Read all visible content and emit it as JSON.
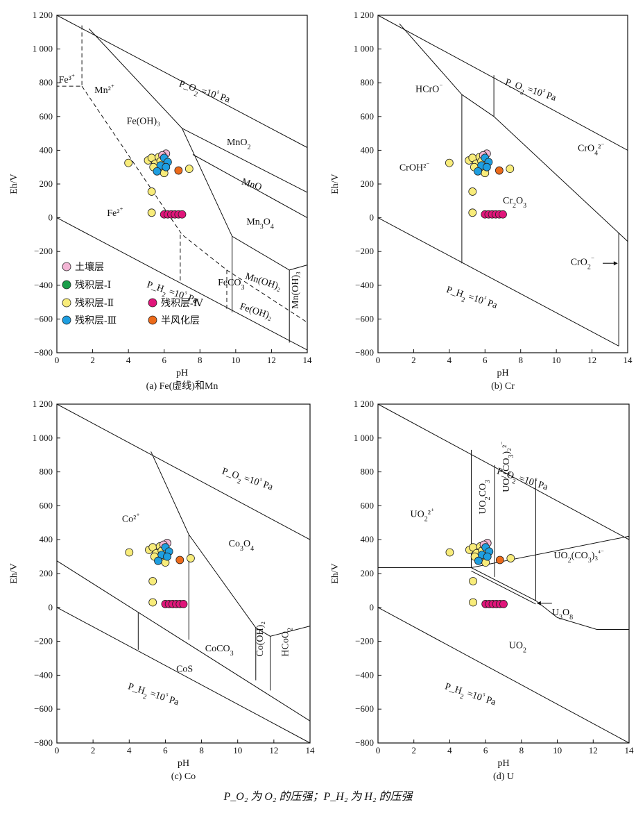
{
  "footnote": "P_O₂ 为 O₂ 的压强；P_H₂ 为 H₂ 的压强",
  "legend": {
    "items": [
      {
        "name": "土壤层",
        "color": "#f2b5d4"
      },
      {
        "name": "残积层-Ⅰ",
        "color": "#1a9e4a"
      },
      {
        "name": "残积层-Ⅱ",
        "color": "#f8ec7a"
      },
      {
        "name": "残积层-Ⅳ",
        "color": "#e0157a"
      },
      {
        "name": "残积层-Ⅲ",
        "color": "#1e9ee0"
      },
      {
        "name": "半风化层",
        "color": "#ec6a1a"
      }
    ]
  },
  "chart_data": [
    {
      "type": "scatter",
      "caption": "(a) Fe(虚线)和Mn",
      "xlabel": "pH",
      "ylabel": "Eh/V",
      "xlim": [
        0,
        14
      ],
      "ylim": [
        -800,
        1200
      ],
      "xticks": [
        "0",
        "2",
        "4",
        "6",
        "8",
        "10",
        "12",
        "14"
      ],
      "yticks": [
        "−800",
        "−600",
        "−400",
        "−200",
        "0",
        "200",
        "400",
        "600",
        "800",
        "1 000",
        "1 200"
      ],
      "region_labels": [
        "Fe³⁺",
        "Mn²⁺",
        "Fe(OH)₃",
        "Fe²⁺",
        "MnO₂",
        "MnO",
        "Mn₃O₄",
        "Mn(OH)₂",
        "Fe(OH)₂",
        "FeCO₃",
        "Mn(OH)₃",
        "P_O₂ =10⁵ Pa",
        "P_H₂ =10⁵ Pa"
      ],
      "boundaries": [
        {
          "style": "solid",
          "points": [
            [
              0,
              1200
            ],
            [
              14,
              416
            ]
          ]
        },
        {
          "style": "solid",
          "points": [
            [
              0,
              0
            ],
            [
              14,
              -784
            ]
          ]
        },
        {
          "style": "solid",
          "points": [
            [
              1.8,
              1120
            ],
            [
              7,
              530
            ],
            [
              9.8,
              -110
            ],
            [
              9.8,
              -560
            ]
          ]
        },
        {
          "style": "solid",
          "points": [
            [
              7,
              530
            ],
            [
              14,
              150
            ]
          ]
        },
        {
          "style": "solid",
          "points": [
            [
              7.6,
              375
            ],
            [
              14,
              0
            ]
          ]
        },
        {
          "style": "solid",
          "points": [
            [
              9.8,
              -110
            ],
            [
              13,
              -310
            ],
            [
              14,
              -280
            ]
          ]
        },
        {
          "style": "solid",
          "points": [
            [
              13,
              -310
            ],
            [
              13,
              -740
            ]
          ]
        },
        {
          "style": "dashed",
          "points": [
            [
              1.4,
              1140
            ],
            [
              1.4,
              780
            ],
            [
              0,
              780
            ]
          ]
        },
        {
          "style": "dashed",
          "points": [
            [
              1.4,
              780
            ],
            [
              7,
              -100
            ],
            [
              9.5,
              -310
            ],
            [
              14,
              -620
            ]
          ]
        },
        {
          "style": "dashed",
          "points": [
            [
              6.9,
              -100
            ],
            [
              6.9,
              -380
            ]
          ]
        },
        {
          "style": "dashed",
          "points": [
            [
              9.5,
              -310
            ],
            [
              9.5,
              -540
            ]
          ]
        }
      ]
    },
    {
      "type": "scatter",
      "caption": "(b) Cr",
      "xlabel": "pH",
      "ylabel": "Eh/V",
      "xlim": [
        0,
        14
      ],
      "ylim": [
        -800,
        1200
      ],
      "xticks": [
        "0",
        "2",
        "4",
        "6",
        "8",
        "10",
        "12",
        "14"
      ],
      "yticks": [
        "−800",
        "−600",
        "−400",
        "−200",
        "0",
        "200",
        "400",
        "600",
        "800",
        "1 000",
        "1 200"
      ],
      "region_labels": [
        "HCrO⁻",
        "CrO₄²⁻",
        "CrOH²⁻",
        "Cr₂O₃",
        "CrO₂⁻",
        "P_O₂ =10⁵ Pa",
        "P_H₂ =10⁵ Pa"
      ],
      "boundaries": [
        {
          "style": "solid",
          "points": [
            [
              0,
              1200
            ],
            [
              14,
              400
            ]
          ]
        },
        {
          "style": "solid",
          "points": [
            [
              0,
              0
            ],
            [
              13.5,
              -760
            ]
          ]
        },
        {
          "style": "solid",
          "points": [
            [
              1.2,
              1150
            ],
            [
              4.7,
              730
            ],
            [
              4.7,
              -270
            ]
          ]
        },
        {
          "style": "solid",
          "points": [
            [
              4.7,
              730
            ],
            [
              6.5,
              600
            ],
            [
              14,
              -140
            ]
          ]
        },
        {
          "style": "solid",
          "points": [
            [
              6.5,
              600
            ],
            [
              6.5,
              845
            ]
          ]
        },
        {
          "style": "solid",
          "points": [
            [
              13.5,
              -90
            ],
            [
              13.5,
              -760
            ]
          ]
        }
      ]
    },
    {
      "type": "scatter",
      "caption": "(c) Co",
      "xlabel": "pH",
      "ylabel": "Eh/V",
      "xlim": [
        0,
        14
      ],
      "ylim": [
        -800,
        1200
      ],
      "xticks": [
        "0",
        "2",
        "4",
        "6",
        "8",
        "10",
        "12",
        "14"
      ],
      "yticks": [
        "−800",
        "−600",
        "−400",
        "−200",
        "0",
        "200",
        "400",
        "600",
        "800",
        "1 000",
        "1 200"
      ],
      "region_labels": [
        "Co²⁺",
        "Co₃O₄",
        "CoCO₃",
        "CoS",
        "Co(OH)₂",
        "HCoO₂",
        "P_O₂ =10⁵ Pa",
        "P_H₂ =10⁵ Pa"
      ],
      "boundaries": [
        {
          "style": "solid",
          "points": [
            [
              0,
              1200
            ],
            [
              14,
              400
            ]
          ]
        },
        {
          "style": "solid",
          "points": [
            [
              0,
              0
            ],
            [
              14,
              -800
            ]
          ]
        },
        {
          "style": "solid",
          "points": [
            [
              0,
              275
            ],
            [
              14,
              -670
            ]
          ]
        },
        {
          "style": "solid",
          "points": [
            [
              5.2,
              920
            ],
            [
              7.3,
              430
            ],
            [
              11,
              -120
            ],
            [
              11.8,
              -170
            ],
            [
              14,
              -110
            ]
          ]
        },
        {
          "style": "solid",
          "points": [
            [
              7.3,
              430
            ],
            [
              7.3,
              -190
            ]
          ]
        },
        {
          "style": "solid",
          "points": [
            [
              4.5,
              -30
            ],
            [
              4.5,
              -250
            ]
          ]
        },
        {
          "style": "solid",
          "points": [
            [
              11,
              -120
            ],
            [
              11,
              -430
            ]
          ]
        },
        {
          "style": "solid",
          "points": [
            [
              11.8,
              -170
            ],
            [
              11.8,
              -490
            ]
          ]
        }
      ]
    },
    {
      "type": "scatter",
      "caption": "(d) U",
      "xlabel": "pH",
      "ylabel": "Eh/V",
      "xlim": [
        0,
        14
      ],
      "ylim": [
        -800,
        1200
      ],
      "xticks": [
        "0",
        "2",
        "4",
        "6",
        "8",
        "10",
        "12",
        "14"
      ],
      "yticks": [
        "−800",
        "−600",
        "−400",
        "−200",
        "0",
        "200",
        "400",
        "600",
        "800",
        "1 000",
        "1 200"
      ],
      "region_labels": [
        "UO₂²⁺",
        "UO₂CO₃",
        "UO₂(CO₃)₂²⁻",
        "UO₂(CO₃)₃⁴⁻",
        "U₃O₈",
        "UO₂",
        "P_O₂ =10⁵ Pa",
        "P_H₂ =10⁵ Pa"
      ],
      "boundaries": [
        {
          "style": "solid",
          "points": [
            [
              0,
              1200
            ],
            [
              14,
              400
            ]
          ]
        },
        {
          "style": "solid",
          "points": [
            [
              0,
              0
            ],
            [
              14,
              -800
            ]
          ]
        },
        {
          "style": "solid",
          "points": [
            [
              0,
              235
            ],
            [
              5.2,
              235
            ],
            [
              8.8,
              40
            ],
            [
              10,
              -60
            ],
            [
              12.2,
              -130
            ],
            [
              14,
              -130
            ]
          ]
        },
        {
          "style": "solid",
          "points": [
            [
              5.2,
              235
            ],
            [
              14,
              420
            ]
          ]
        },
        {
          "style": "solid",
          "points": [
            [
              5.2,
              215
            ],
            [
              8.8,
              20
            ]
          ]
        },
        {
          "style": "solid",
          "points": [
            [
              5.2,
              235
            ],
            [
              5.2,
              930
            ]
          ]
        },
        {
          "style": "solid",
          "points": [
            [
              6.5,
              180
            ],
            [
              6.5,
              840
            ]
          ]
        },
        {
          "style": "solid",
          "points": [
            [
              8.8,
              40
            ],
            [
              8.8,
              760
            ]
          ]
        }
      ]
    }
  ],
  "scatter_points": [
    {
      "ph": 4.0,
      "eh": 325,
      "color": "#f8ec7a"
    },
    {
      "ph": 5.3,
      "eh": 155,
      "color": "#f8ec7a"
    },
    {
      "ph": 5.3,
      "eh": 30,
      "color": "#f8ec7a"
    },
    {
      "ph": 7.4,
      "eh": 290,
      "color": "#f8ec7a"
    },
    {
      "ph": 6.8,
      "eh": 280,
      "color": "#ec6a1a"
    },
    {
      "ph": 5.1,
      "eh": 340,
      "color": "#f8ec7a"
    },
    {
      "ph": 5.3,
      "eh": 355,
      "color": "#f8ec7a"
    },
    {
      "ph": 5.5,
      "eh": 320,
      "color": "#f8ec7a"
    },
    {
      "ph": 5.7,
      "eh": 360,
      "color": "#f8ec7a"
    },
    {
      "ph": 5.9,
      "eh": 300,
      "color": "#f8ec7a"
    },
    {
      "ph": 5.6,
      "eh": 285,
      "color": "#f8ec7a"
    },
    {
      "ph": 6.0,
      "eh": 265,
      "color": "#f8ec7a"
    },
    {
      "ph": 5.4,
      "eh": 300,
      "color": "#f8ec7a"
    },
    {
      "ph": 5.8,
      "eh": 335,
      "color": "#f8ec7a"
    },
    {
      "ph": 6.1,
      "eh": 380,
      "color": "#f2b5d4"
    },
    {
      "ph": 5.9,
      "eh": 370,
      "color": "#f2b5d4"
    },
    {
      "ph": 6.0,
      "eh": 355,
      "color": "#1e9ee0"
    },
    {
      "ph": 6.2,
      "eh": 330,
      "color": "#1e9ee0"
    },
    {
      "ph": 5.8,
      "eh": 310,
      "color": "#1e9ee0"
    },
    {
      "ph": 5.6,
      "eh": 275,
      "color": "#1e9ee0"
    },
    {
      "ph": 6.1,
      "eh": 300,
      "color": "#1e9ee0"
    },
    {
      "ph": 6.0,
      "eh": 20,
      "color": "#e0157a"
    },
    {
      "ph": 6.2,
      "eh": 20,
      "color": "#e0157a"
    },
    {
      "ph": 6.4,
      "eh": 20,
      "color": "#e0157a"
    },
    {
      "ph": 6.6,
      "eh": 20,
      "color": "#e0157a"
    },
    {
      "ph": 6.8,
      "eh": 20,
      "color": "#e0157a"
    },
    {
      "ph": 7.0,
      "eh": 20,
      "color": "#e0157a"
    }
  ]
}
